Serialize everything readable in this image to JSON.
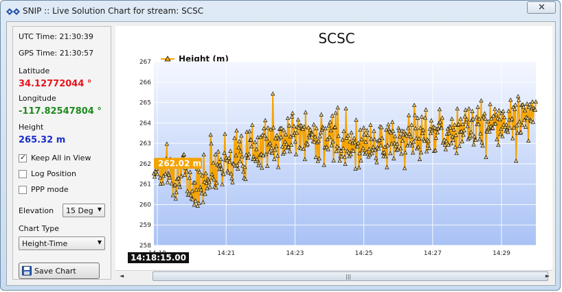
{
  "window": {
    "title": "SNIP :: Live Solution Chart for stream:  SCSC",
    "close_glyph": "×"
  },
  "panel": {
    "utc_time": "UTC Time: 21:30:39",
    "gps_time": "GPS Time: 21:30:57",
    "latitude_label": "Latitude",
    "latitude_value": "34.12772044 °",
    "longitude_label": "Longitude",
    "longitude_value": "-117.82547804 °",
    "height_label": "Height",
    "height_value": "265.32 m",
    "keep_all_label": "Keep All in View",
    "keep_all_checked": true,
    "log_position_label": "Log Position",
    "log_position_checked": false,
    "ppp_mode_label": "PPP mode",
    "ppp_mode_checked": false,
    "elevation_label": "Elevation",
    "elevation_value": "15 Deg",
    "chart_type_label": "Chart Type",
    "chart_type_value": "Height-Time",
    "save_label": "Save Chart",
    "colors": {
      "latitude": "#e8141c",
      "longitude": "#1d8a1d",
      "height": "#1a2ec8"
    }
  },
  "chart_data": {
    "type": "line",
    "title": "SCSC",
    "legend": "Height (m)",
    "legend_placement": "top-left",
    "ylim": [
      258,
      267
    ],
    "y_ticks": [
      "258",
      "259",
      "260",
      "261",
      "262",
      "263",
      "264",
      "265",
      "266",
      "267"
    ],
    "x_ticks": [
      "14:19",
      "14:21",
      "14:23",
      "14:25",
      "14:27",
      "14:29"
    ],
    "xlim_minutes": [
      18.9,
      30.0
    ],
    "grid": true,
    "series_color": "#f5a300",
    "marker": "triangle",
    "cursor_time": "14:18:15.00",
    "cursor_value": "262.02 m",
    "trend_anchors": [
      {
        "t": 18.9,
        "y": 261.9
      },
      {
        "t": 19.5,
        "y": 261.7
      },
      {
        "t": 20.2,
        "y": 260.8
      },
      {
        "t": 20.6,
        "y": 261.8
      },
      {
        "t": 21.0,
        "y": 262.1
      },
      {
        "t": 22.0,
        "y": 262.8
      },
      {
        "t": 23.0,
        "y": 263.4
      },
      {
        "t": 24.0,
        "y": 263.2
      },
      {
        "t": 25.0,
        "y": 263.0
      },
      {
        "t": 26.0,
        "y": 263.1
      },
      {
        "t": 27.0,
        "y": 263.6
      },
      {
        "t": 28.0,
        "y": 263.7
      },
      {
        "t": 29.0,
        "y": 263.9
      },
      {
        "t": 30.0,
        "y": 264.4
      }
    ]
  },
  "scrollbar": {
    "grip_glyph": "|||",
    "left_glyph": "◄",
    "right_glyph": "►"
  }
}
